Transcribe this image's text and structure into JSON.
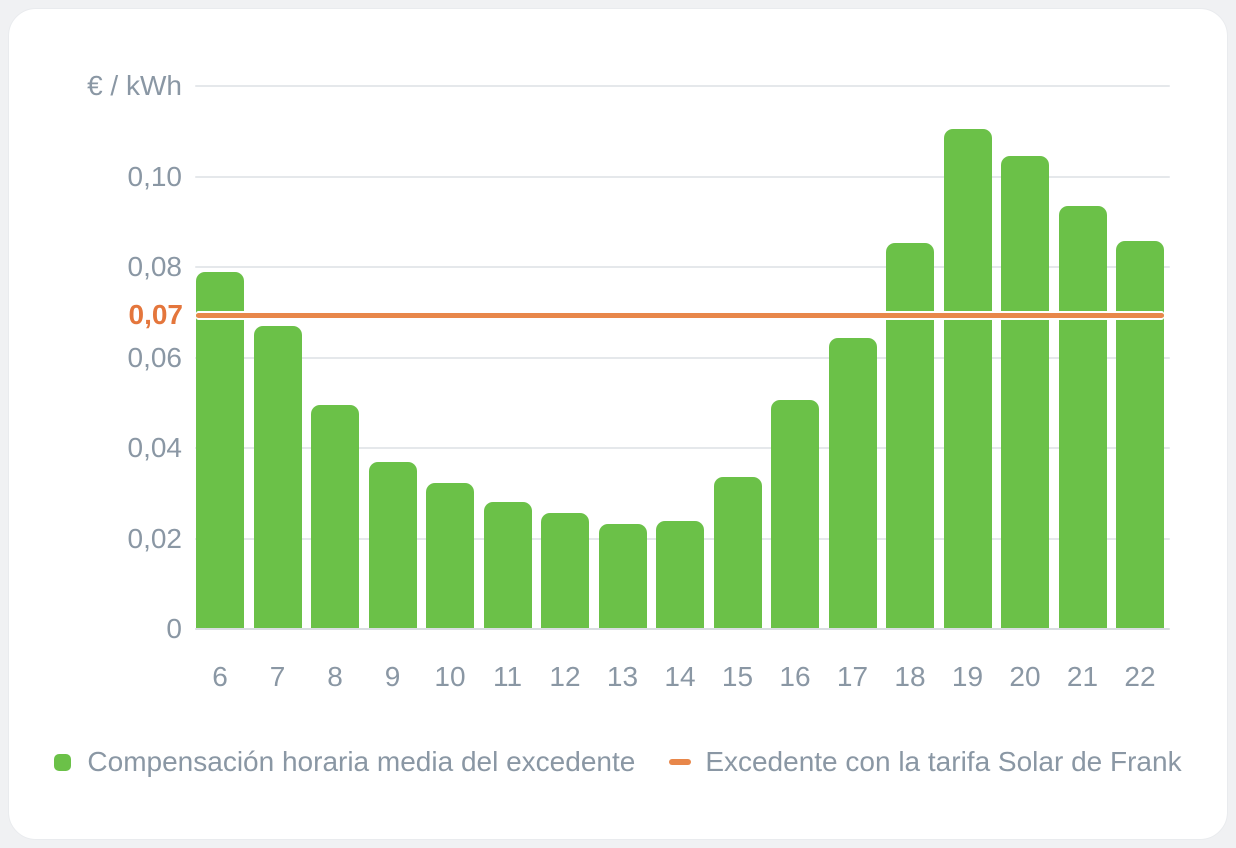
{
  "chart_data": {
    "type": "bar",
    "title": "",
    "categories": [
      "6",
      "7",
      "8",
      "9",
      "10",
      "11",
      "12",
      "13",
      "14",
      "15",
      "16",
      "17",
      "18",
      "19",
      "20",
      "21",
      "22"
    ],
    "series": [
      {
        "name": "Compensación horaria media del excedente",
        "type": "bar",
        "color": "#6BC148",
        "values": [
          0.079,
          0.067,
          0.0495,
          0.037,
          0.0322,
          0.028,
          0.0256,
          0.0233,
          0.0239,
          0.0335,
          0.0505,
          0.0643,
          0.0853,
          0.1104,
          0.1046,
          0.0934,
          0.0857
        ]
      },
      {
        "name": "Excedente con la tarifa Solar de Frank",
        "type": "line",
        "color": "#E8874A",
        "value": 0.07
      }
    ],
    "xlabel": "",
    "ylabel": "€ / kWh",
    "ylim": [
      0,
      0.12
    ],
    "grid": true,
    "legend_position": "bottom",
    "y_ticks": [
      {
        "value": 0,
        "label": "0"
      },
      {
        "value": 0.02,
        "label": "0,02"
      },
      {
        "value": 0.04,
        "label": "0,04"
      },
      {
        "value": 0.06,
        "label": "0,06"
      },
      {
        "value": 0.08,
        "label": "0,08"
      },
      {
        "value": 0.1,
        "label": "0,10"
      },
      {
        "value": 0.12,
        "label": ""
      }
    ],
    "threshold": {
      "value": 0.07,
      "label": "0,07"
    }
  },
  "colors": {
    "bar_green": "#6BC148",
    "line_orange": "#E8874A",
    "label_orange": "#E4763C",
    "text_gray": "#8A97A4",
    "grid": "#E5E8EB",
    "grid_zero": "#D9DDE1",
    "page_bg": "#F0F1F3",
    "card_bg": "#FFFFFF"
  }
}
